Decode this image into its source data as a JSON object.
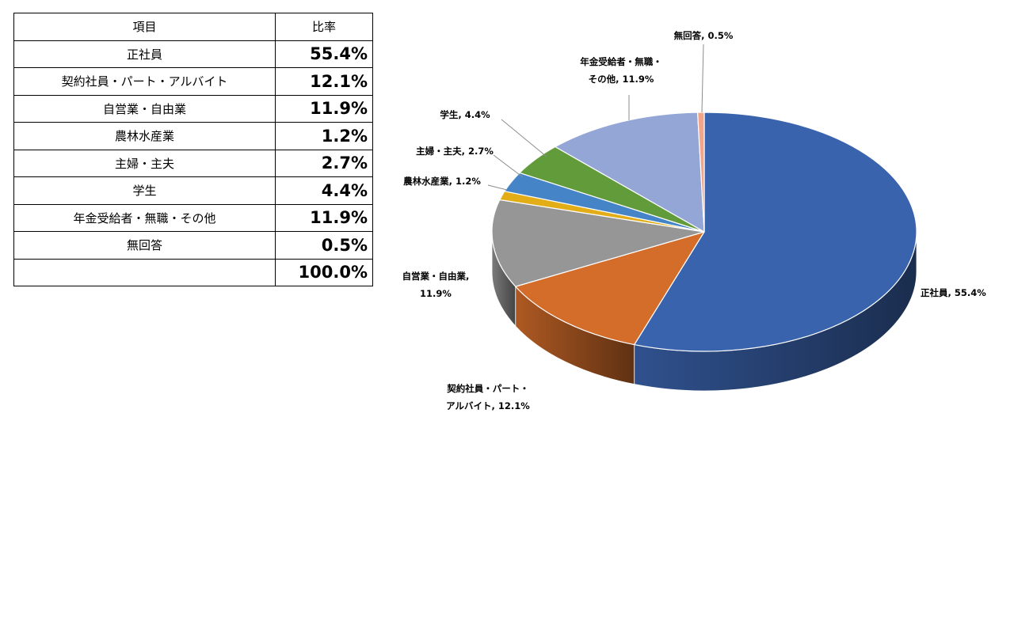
{
  "table": {
    "header_item": "項目",
    "header_ratio": "比率",
    "rows": [
      {
        "item": "正社員",
        "value": "55.4%"
      },
      {
        "item": "契約社員・パート・アルバイト",
        "value": "12.1%"
      },
      {
        "item": "自営業・自由業",
        "value": "11.9%"
      },
      {
        "item": "農林水産業",
        "value": "1.2%"
      },
      {
        "item": "主婦・主夫",
        "value": "2.7%"
      },
      {
        "item": "学生",
        "value": "4.4%"
      },
      {
        "item": "年金受給者・無職・その他",
        "value": "11.9%"
      },
      {
        "item": "無回答",
        "value": "0.5%"
      },
      {
        "item": "",
        "value": "100.0%"
      }
    ]
  },
  "chart_data": {
    "type": "pie",
    "title": "",
    "style": "3d",
    "categories": [
      "正社員",
      "契約社員・パート・アルバイト",
      "自営業・自由業",
      "農林水産業",
      "主婦・主夫",
      "学生",
      "年金受給者・無職・その他",
      "無回答"
    ],
    "values": [
      55.4,
      12.1,
      11.9,
      1.2,
      2.7,
      4.4,
      11.9,
      0.5
    ],
    "colors": [
      "#3a63ad",
      "#d46c2a",
      "#969696",
      "#e2ad17",
      "#4585c7",
      "#629b3a",
      "#93a6d5",
      "#f2a58a"
    ],
    "data_labels": [
      [
        "正社員, 55.4%"
      ],
      [
        "契約社員・パート・",
        "アルバイト, 12.1%"
      ],
      [
        "自営業・自由業,",
        "11.9%"
      ],
      [
        "農林水産業, 1.2%"
      ],
      [
        "主婦・主夫, 2.7%"
      ],
      [
        "学生, 4.4%"
      ],
      [
        "年金受給者・無職・",
        "その他, 11.9%"
      ],
      [
        "無回答, 0.5%"
      ]
    ]
  }
}
